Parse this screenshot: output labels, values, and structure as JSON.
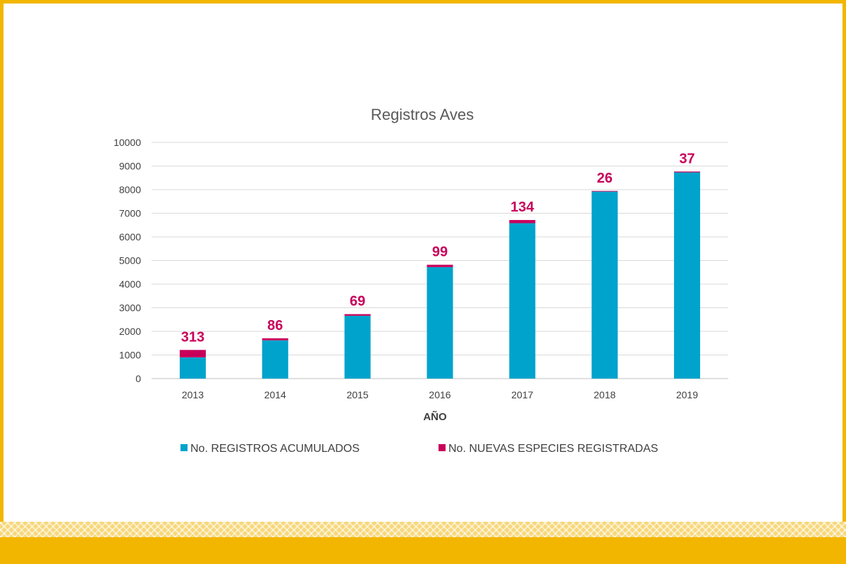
{
  "colors": {
    "frame": "#F2B600",
    "acumulados": "#00A3CC",
    "nuevas": "#C8005A",
    "grid": "#D9D9D9",
    "text": "#404040",
    "title": "#595959"
  },
  "chart_data": {
    "type": "bar",
    "stacked": true,
    "title": "Registros Aves",
    "xlabel": "AÑO",
    "ylabel": "",
    "categories": [
      "2013",
      "2014",
      "2015",
      "2016",
      "2017",
      "2018",
      "2019"
    ],
    "ylim": [
      0,
      10000
    ],
    "yticks": [
      "0",
      "1000",
      "2000",
      "3000",
      "4000",
      "5000",
      "6000",
      "7000",
      "8000",
      "9000",
      "10000"
    ],
    "grid": true,
    "legend_position": "bottom",
    "series": [
      {
        "name": "No. REGISTROS ACUMULADOS",
        "color": "#00A3CC",
        "values": [
          900,
          1620,
          2660,
          4720,
          6580,
          7920,
          8730
        ]
      },
      {
        "name": "No. NUEVAS ESPECIES REGISTRADAS",
        "color": "#C8005A",
        "values": [
          313,
          86,
          69,
          99,
          134,
          26,
          37
        ],
        "data_labels": [
          "313",
          "86",
          "69",
          "99",
          "134",
          "26",
          "37"
        ]
      }
    ]
  }
}
